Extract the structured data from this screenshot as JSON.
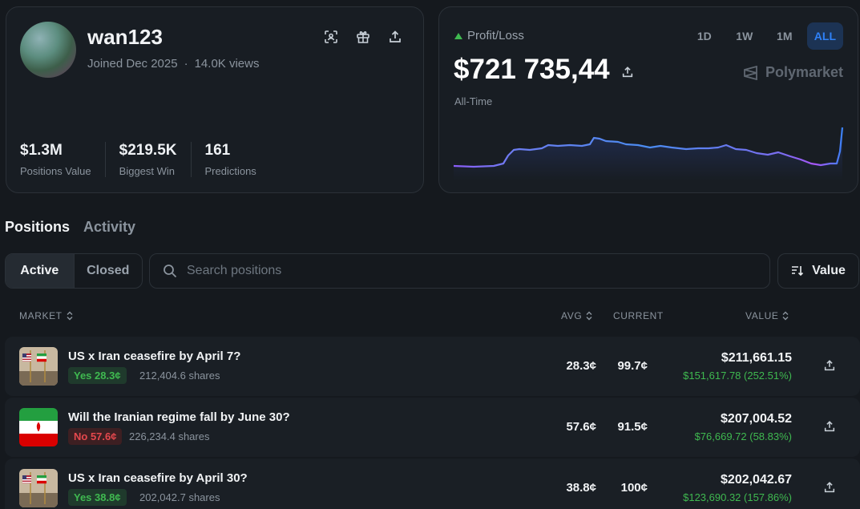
{
  "profile": {
    "username": "wan123",
    "joined": "Joined Dec 2025",
    "separator": "·",
    "views": "14.0K views",
    "icons": [
      "scan-icon",
      "gift-icon",
      "share-icon"
    ],
    "stats": [
      {
        "value": "$1.3M",
        "label": "Positions Value"
      },
      {
        "value": "$219.5K",
        "label": "Biggest Win"
      },
      {
        "value": "161",
        "label": "Predictions"
      }
    ]
  },
  "pnl_card": {
    "label": "Profit/Loss",
    "value": "$721 735,44",
    "period_label": "All-Time",
    "brand": "Polymarket",
    "ranges": [
      {
        "label": "1D",
        "active": false
      },
      {
        "label": "1W",
        "active": false
      },
      {
        "label": "1M",
        "active": false
      },
      {
        "label": "ALL",
        "active": true
      }
    ],
    "accent_color": "#2f81f7",
    "positive_color": "#3fb950"
  },
  "section_tabs": [
    {
      "label": "Positions",
      "active": true
    },
    {
      "label": "Activity",
      "active": false
    }
  ],
  "filter": {
    "segments": [
      "Active",
      "Closed"
    ],
    "search_placeholder": "Search positions",
    "sort_label": "Value"
  },
  "table": {
    "headers": {
      "market": "MARKET",
      "avg": "AVG",
      "current": "CURRENT",
      "value": "VALUE"
    },
    "rows": [
      {
        "title": "US x Iran ceasefire by April 7?",
        "badge": "Yes 28.3¢",
        "outcome": "yes",
        "shares": "212,404.6 shares",
        "avg": "28.3¢",
        "current": "99.7¢",
        "value": "$211,661.15",
        "pnl": "$151,617.78 (252.51%)",
        "thumb": "flags"
      },
      {
        "title": "Will the Iranian regime fall by June 30?",
        "badge": "No 57.6¢",
        "outcome": "no",
        "shares": "226,234.4 shares",
        "avg": "57.6¢",
        "current": "91.5¢",
        "value": "$207,004.52",
        "pnl": "$76,669.72 (58.83%)",
        "thumb": "iran-flag"
      },
      {
        "title": "US x Iran ceasefire by April 30?",
        "badge": "Yes 38.8¢",
        "outcome": "yes",
        "shares": "202,042.7 shares",
        "avg": "38.8¢",
        "current": "100¢",
        "value": "$202,042.67",
        "pnl": "$123,690.32 (157.86%)",
        "thumb": "flags"
      }
    ]
  }
}
